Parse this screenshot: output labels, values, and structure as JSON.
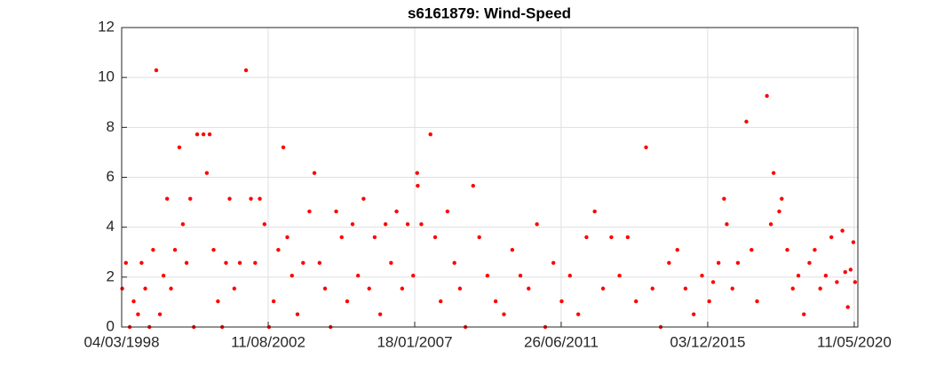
{
  "chart_data": {
    "type": "scatter",
    "title": "s6161879: Wind-Speed",
    "color": "#ff0000",
    "grid": true,
    "xlim": [
      "1998-03-04",
      "2020-06-20"
    ],
    "xticks": [
      {
        "value": "1998-03-04",
        "label": "04/03/1998"
      },
      {
        "value": "2002-08-11",
        "label": "11/08/2002"
      },
      {
        "value": "2007-01-18",
        "label": "18/01/2007"
      },
      {
        "value": "2011-06-26",
        "label": "26/06/2011"
      },
      {
        "value": "2015-12-03",
        "label": "03/12/2015"
      },
      {
        "value": "2020-05-11",
        "label": "11/05/2020"
      }
    ],
    "ylim": [
      0,
      12
    ],
    "yticks": [
      0,
      2,
      4,
      6,
      8,
      10,
      12
    ],
    "x": [
      "1998-03-10",
      "1998-04-20",
      "1998-06-01",
      "1998-07-15",
      "1998-09-01",
      "1998-10-10",
      "1998-11-20",
      "1999-01-05",
      "1999-02-15",
      "1999-03-22",
      "1999-05-01",
      "1999-06-10",
      "1999-07-20",
      "1999-09-01",
      "1999-10-15",
      "1999-12-02",
      "2000-01-10",
      "2000-02-20",
      "2000-04-01",
      "2000-05-10",
      "2000-06-17",
      "2000-08-25",
      "2000-10-01",
      "2000-11-01",
      "2000-12-15",
      "2001-02-01",
      "2001-03-20",
      "2001-05-01",
      "2001-06-10",
      "2001-08-01",
      "2001-10-01",
      "2001-12-09",
      "2002-02-01",
      "2002-03-20",
      "2002-05-10",
      "2002-07-01",
      "2002-08-20",
      "2002-10-10",
      "2002-12-01",
      "2003-01-25",
      "2003-03-10",
      "2003-05-01",
      "2003-07-01",
      "2003-09-01",
      "2003-11-10",
      "2004-01-04",
      "2004-03-01",
      "2004-05-01",
      "2004-07-01",
      "2004-09-01",
      "2004-11-01",
      "2005-01-01",
      "2005-03-01",
      "2005-05-01",
      "2005-07-01",
      "2005-09-01",
      "2005-11-01",
      "2006-01-01",
      "2006-03-01",
      "2006-05-01",
      "2006-07-01",
      "2006-09-01",
      "2006-11-01",
      "2007-01-01",
      "2007-02-14",
      "2007-02-20",
      "2007-04-01",
      "2007-07-11",
      "2007-09-01",
      "2007-11-01",
      "2008-01-15",
      "2008-04-01",
      "2008-06-01",
      "2008-08-01",
      "2008-10-25",
      "2009-01-01",
      "2009-04-01",
      "2009-07-01",
      "2009-10-01",
      "2010-01-01",
      "2010-04-01",
      "2010-07-01",
      "2010-10-01",
      "2011-01-01",
      "2011-04-01",
      "2011-07-01",
      "2011-10-01",
      "2012-01-01",
      "2012-04-01",
      "2012-07-01",
      "2012-10-01",
      "2013-01-01",
      "2013-04-01",
      "2013-07-01",
      "2013-10-01",
      "2014-01-20",
      "2014-04-01",
      "2014-07-01",
      "2014-10-01",
      "2015-01-01",
      "2015-04-01",
      "2015-07-01",
      "2015-10-01",
      "2015-12-20",
      "2016-02-01",
      "2016-04-01",
      "2016-06-01",
      "2016-07-01",
      "2016-09-01",
      "2016-11-01",
      "2017-02-03",
      "2017-04-01",
      "2017-06-01",
      "2017-09-18",
      "2017-11-01",
      "2017-12-01",
      "2018-02-01",
      "2018-03-01",
      "2018-05-01",
      "2018-07-01",
      "2018-09-01",
      "2018-11-01",
      "2019-01-01",
      "2019-03-01",
      "2019-05-01",
      "2019-07-01",
      "2019-09-01",
      "2019-11-01",
      "2020-01-01",
      "2020-02-01",
      "2020-03-01",
      "2020-04-01",
      "2020-05-01",
      "2020-05-20"
    ],
    "values": [
      1.54,
      2.57,
      0,
      1.03,
      0.51,
      2.57,
      1.54,
      0,
      3.09,
      10.29,
      0.51,
      2.06,
      5.14,
      1.54,
      3.09,
      7.2,
      4.12,
      2.57,
      5.14,
      0,
      7.72,
      7.72,
      6.17,
      7.72,
      3.09,
      1.03,
      0,
      2.57,
      5.14,
      1.54,
      2.57,
      10.29,
      5.14,
      2.57,
      5.14,
      4.12,
      0,
      1.03,
      3.09,
      7.2,
      3.6,
      2.06,
      0.51,
      2.57,
      4.63,
      6.17,
      2.57,
      1.54,
      0,
      4.63,
      3.6,
      1.03,
      4.12,
      2.06,
      5.14,
      1.54,
      3.6,
      0.51,
      4.12,
      2.57,
      4.63,
      1.54,
      4.12,
      2.06,
      6.17,
      5.66,
      4.12,
      7.72,
      3.6,
      1.03,
      4.63,
      2.57,
      1.54,
      0,
      5.66,
      3.6,
      2.06,
      1.03,
      0.51,
      3.09,
      2.06,
      1.54,
      4.12,
      0,
      2.57,
      1.03,
      2.06,
      0.51,
      3.6,
      4.63,
      1.54,
      3.6,
      2.06,
      3.6,
      1.03,
      7.2,
      1.54,
      0,
      2.57,
      3.09,
      1.54,
      0.51,
      2.06,
      1.03,
      1.8,
      2.57,
      5.14,
      4.12,
      1.54,
      2.57,
      8.23,
      3.09,
      1.03,
      9.26,
      4.12,
      6.17,
      4.63,
      5.14,
      3.09,
      1.54,
      2.06,
      0.51,
      2.57,
      3.09,
      1.54,
      2.06,
      3.6,
      1.8,
      3.86,
      2.2,
      0.8,
      2.3,
      3.4,
      1.8
    ]
  }
}
